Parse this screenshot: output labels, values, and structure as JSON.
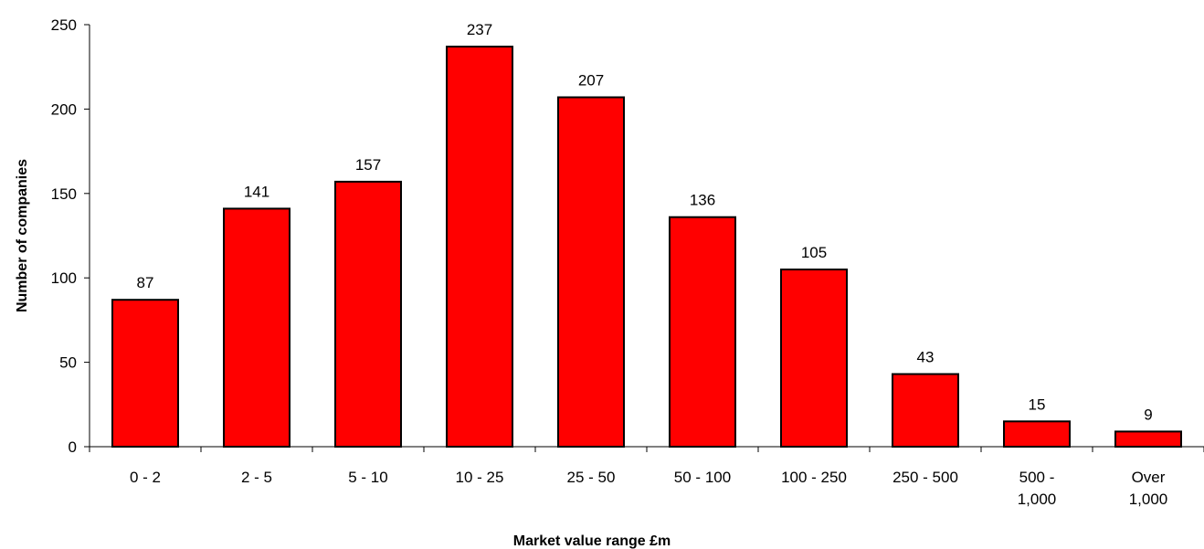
{
  "chart_data": {
    "type": "bar",
    "categories": [
      [
        "0 - 2"
      ],
      [
        "2 - 5"
      ],
      [
        "5 - 10"
      ],
      [
        "10 - 25"
      ],
      [
        "25 - 50"
      ],
      [
        "50 - 100"
      ],
      [
        "100 - 250"
      ],
      [
        "250 - 500"
      ],
      [
        "500 -",
        "1,000"
      ],
      [
        "Over",
        "1,000"
      ]
    ],
    "values": [
      87,
      141,
      157,
      237,
      207,
      136,
      105,
      43,
      15,
      9
    ],
    "data_labels": [
      "87",
      "141",
      "157",
      "237",
      "207",
      "136",
      "105",
      "43",
      "15",
      "9"
    ],
    "xlabel": "Market value range £m",
    "ylabel": "Number of companies",
    "ylim": [
      0,
      250
    ],
    "yticks": [
      0,
      50,
      100,
      150,
      200,
      250
    ],
    "grid": false,
    "bar_color": "#ff0000",
    "bar_edge_color": "#000000"
  }
}
